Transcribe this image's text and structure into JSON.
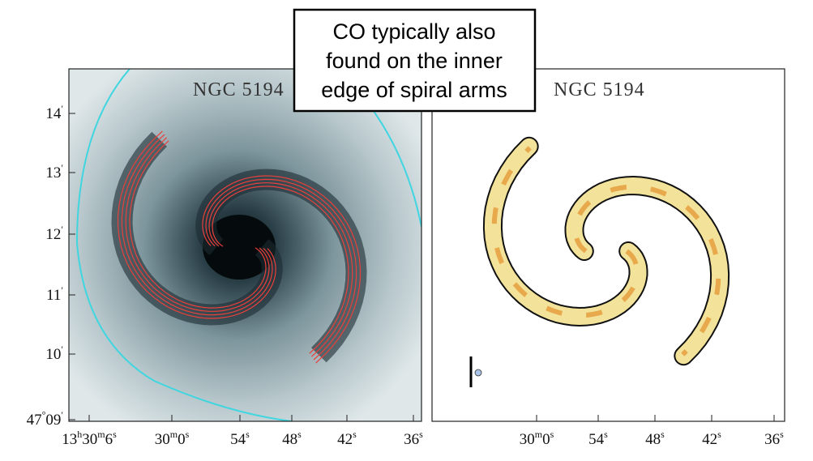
{
  "callout": {
    "lines": [
      "CO typically also",
      "found on the inner",
      "edge of spiral arms"
    ]
  },
  "panels": [
    {
      "title": "NGC 5194",
      "y_labels": [
        [
          "14",
          "′"
        ],
        [
          "13",
          "′"
        ],
        [
          "12",
          "′"
        ],
        [
          "11",
          "′"
        ],
        [
          "10",
          "′"
        ],
        [
          "47",
          "°",
          "09",
          "′"
        ]
      ],
      "x_labels": [
        [
          "13",
          "h",
          "30",
          "m",
          "6",
          "s"
        ],
        [
          "30",
          "m",
          "0",
          "s"
        ],
        [
          "54",
          "s"
        ],
        [
          "48",
          "s"
        ],
        [
          "42",
          "s"
        ],
        [
          "36",
          "s"
        ]
      ]
    },
    {
      "title": "NGC 5194",
      "x_labels": [
        [
          "30",
          "m",
          "0",
          "s"
        ],
        [
          "54",
          "s"
        ],
        [
          "48",
          "s"
        ],
        [
          "42",
          "s"
        ],
        [
          "36",
          "s"
        ]
      ]
    }
  ]
}
